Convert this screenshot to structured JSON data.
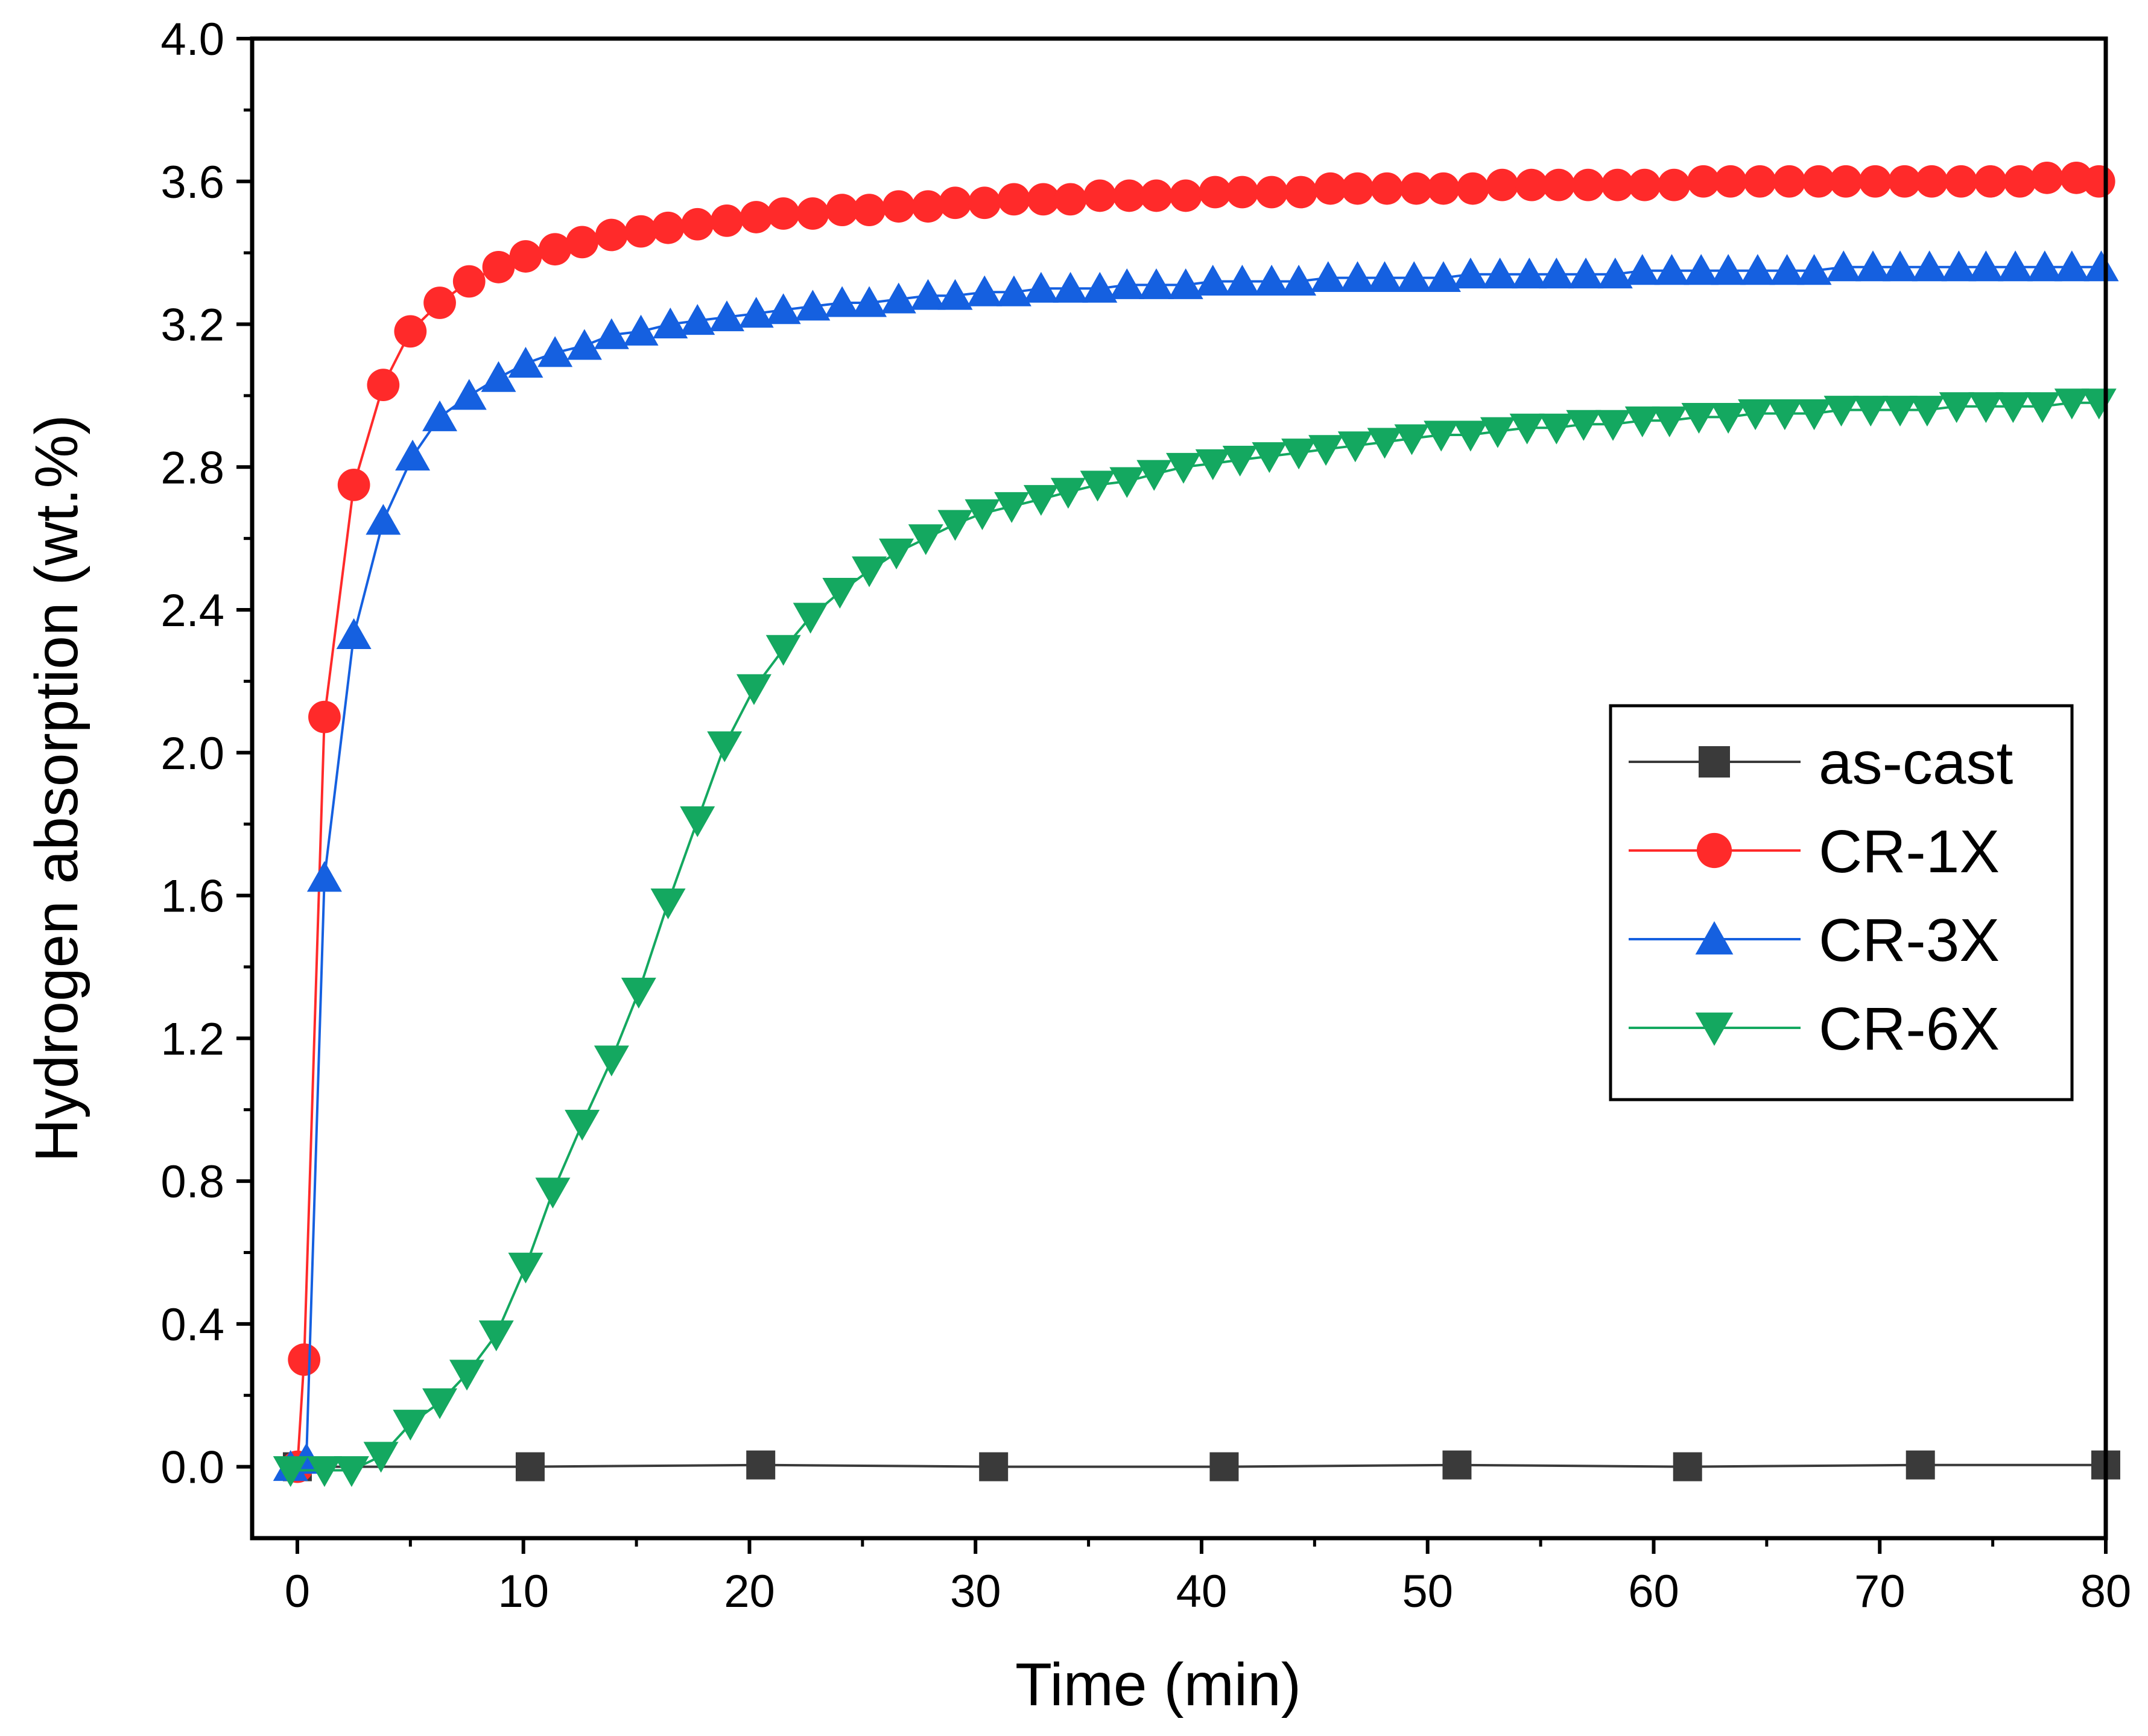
{
  "chart_data": {
    "type": "line",
    "title": "",
    "xlabel": "Time (min)",
    "ylabel": "Hydrogen absorption (wt.%)",
    "xlim": [
      -2,
      80
    ],
    "ylim": [
      -0.2,
      4.0
    ],
    "xticks": [
      0,
      10,
      20,
      30,
      40,
      50,
      60,
      70,
      80
    ],
    "yticks": [
      0.0,
      0.4,
      0.8,
      1.2,
      1.6,
      2.0,
      2.4,
      2.8,
      3.2,
      3.6,
      4.0
    ],
    "xtick_labels": [
      "0",
      "10",
      "20",
      "30",
      "40",
      "50",
      "60",
      "70",
      "80"
    ],
    "ytick_labels": [
      "0.0",
      "0.4",
      "0.8",
      "1.2",
      "1.6",
      "2.0",
      "2.4",
      "2.8",
      "3.2",
      "3.6",
      "4.0"
    ],
    "grid": false,
    "legend_position": "center-right",
    "series": [
      {
        "name": "as-cast",
        "color": "#3a3a3a",
        "marker": "square",
        "x": [
          0,
          10.3,
          20.5,
          30.8,
          41.0,
          51.3,
          61.5,
          71.8,
          80.0
        ],
        "values": [
          0.0,
          0.0,
          0.005,
          0.0,
          0.0,
          0.005,
          0.0,
          0.005,
          0.005
        ]
      },
      {
        "name": "CR-1X",
        "color": "#ff2a2a",
        "marker": "circle",
        "x": [
          0,
          0.3,
          1.2,
          2.5,
          3.8,
          5.0,
          6.3,
          7.6,
          8.9,
          10.1,
          11.4,
          12.6,
          13.9,
          15.2,
          16.4,
          17.7,
          19.0,
          20.3,
          21.5,
          22.8,
          24.1,
          25.3,
          26.6,
          27.9,
          29.1,
          30.4,
          31.7,
          33.0,
          34.2,
          35.5,
          36.8,
          38.0,
          39.3,
          40.6,
          41.8,
          43.1,
          44.4,
          45.7,
          46.9,
          48.2,
          49.5,
          50.7,
          52.0,
          53.3,
          54.6,
          55.8,
          57.1,
          58.4,
          59.6,
          60.9,
          62.2,
          63.4,
          64.7,
          66.0,
          67.3,
          68.5,
          69.8,
          71.1,
          72.3,
          73.6,
          74.9,
          76.2,
          77.4,
          78.7,
          79.7
        ],
        "values": [
          0.0,
          0.3,
          2.1,
          2.75,
          3.03,
          3.18,
          3.26,
          3.32,
          3.36,
          3.39,
          3.41,
          3.43,
          3.45,
          3.46,
          3.47,
          3.48,
          3.49,
          3.5,
          3.51,
          3.51,
          3.52,
          3.52,
          3.53,
          3.53,
          3.54,
          3.54,
          3.55,
          3.55,
          3.55,
          3.56,
          3.56,
          3.56,
          3.56,
          3.57,
          3.57,
          3.57,
          3.57,
          3.58,
          3.58,
          3.58,
          3.58,
          3.58,
          3.58,
          3.59,
          3.59,
          3.59,
          3.59,
          3.59,
          3.59,
          3.59,
          3.6,
          3.6,
          3.6,
          3.6,
          3.6,
          3.6,
          3.6,
          3.6,
          3.6,
          3.6,
          3.6,
          3.6,
          3.61,
          3.61,
          3.6
        ]
      },
      {
        "name": "CR-3X",
        "color": "#1560e0",
        "marker": "triangle-up",
        "x": [
          -0.3,
          0.4,
          1.2,
          2.5,
          3.8,
          5.1,
          6.3,
          7.6,
          8.9,
          10.1,
          11.4,
          12.7,
          13.9,
          15.2,
          16.5,
          17.7,
          19.0,
          20.3,
          21.5,
          22.8,
          24.1,
          25.3,
          26.6,
          27.9,
          29.1,
          30.4,
          31.7,
          32.9,
          34.2,
          35.5,
          36.7,
          38.0,
          39.3,
          40.5,
          41.8,
          43.1,
          44.3,
          45.6,
          46.9,
          48.1,
          49.4,
          50.7,
          51.9,
          53.2,
          54.5,
          55.7,
          57.0,
          58.3,
          59.5,
          60.8,
          62.1,
          63.3,
          64.6,
          65.9,
          67.1,
          68.4,
          69.7,
          70.9,
          72.2,
          73.5,
          74.7,
          76.0,
          77.3,
          78.5,
          79.8
        ],
        "values": [
          0.0,
          0.02,
          1.65,
          2.33,
          2.65,
          2.83,
          2.94,
          3.0,
          3.05,
          3.09,
          3.12,
          3.14,
          3.17,
          3.18,
          3.2,
          3.21,
          3.22,
          3.23,
          3.24,
          3.25,
          3.26,
          3.26,
          3.27,
          3.28,
          3.28,
          3.29,
          3.29,
          3.3,
          3.3,
          3.3,
          3.31,
          3.31,
          3.31,
          3.32,
          3.32,
          3.32,
          3.32,
          3.33,
          3.33,
          3.33,
          3.33,
          3.33,
          3.34,
          3.34,
          3.34,
          3.34,
          3.34,
          3.34,
          3.35,
          3.35,
          3.35,
          3.35,
          3.35,
          3.35,
          3.35,
          3.36,
          3.36,
          3.36,
          3.36,
          3.36,
          3.36,
          3.36,
          3.36,
          3.36,
          3.36
        ]
      },
      {
        "name": "CR-6X",
        "color": "#14a860",
        "marker": "triangle-down",
        "x": [
          -0.3,
          1.2,
          2.4,
          3.7,
          5.0,
          6.3,
          7.5,
          8.8,
          10.1,
          11.3,
          12.6,
          13.9,
          15.1,
          16.4,
          17.7,
          18.9,
          20.2,
          21.5,
          22.7,
          24.0,
          25.3,
          26.5,
          27.8,
          29.1,
          30.3,
          31.6,
          32.9,
          34.1,
          35.4,
          36.7,
          37.9,
          39.2,
          40.5,
          41.7,
          43.0,
          44.3,
          45.5,
          46.8,
          48.1,
          49.3,
          50.6,
          51.9,
          53.1,
          54.4,
          55.7,
          56.9,
          58.2,
          59.5,
          60.7,
          62.0,
          63.3,
          64.5,
          65.8,
          67.1,
          68.3,
          69.6,
          70.9,
          72.1,
          73.4,
          74.7,
          75.9,
          77.2,
          78.5,
          79.7
        ],
        "values": [
          -0.01,
          -0.01,
          -0.01,
          0.03,
          0.12,
          0.18,
          0.26,
          0.37,
          0.56,
          0.77,
          0.96,
          1.14,
          1.33,
          1.58,
          1.81,
          2.02,
          2.18,
          2.29,
          2.38,
          2.45,
          2.51,
          2.56,
          2.6,
          2.64,
          2.67,
          2.69,
          2.71,
          2.73,
          2.75,
          2.76,
          2.78,
          2.8,
          2.81,
          2.82,
          2.83,
          2.84,
          2.85,
          2.86,
          2.87,
          2.88,
          2.89,
          2.89,
          2.9,
          2.91,
          2.91,
          2.92,
          2.92,
          2.93,
          2.93,
          2.94,
          2.94,
          2.95,
          2.95,
          2.95,
          2.96,
          2.96,
          2.96,
          2.96,
          2.97,
          2.97,
          2.97,
          2.97,
          2.98,
          2.98
        ]
      }
    ]
  }
}
